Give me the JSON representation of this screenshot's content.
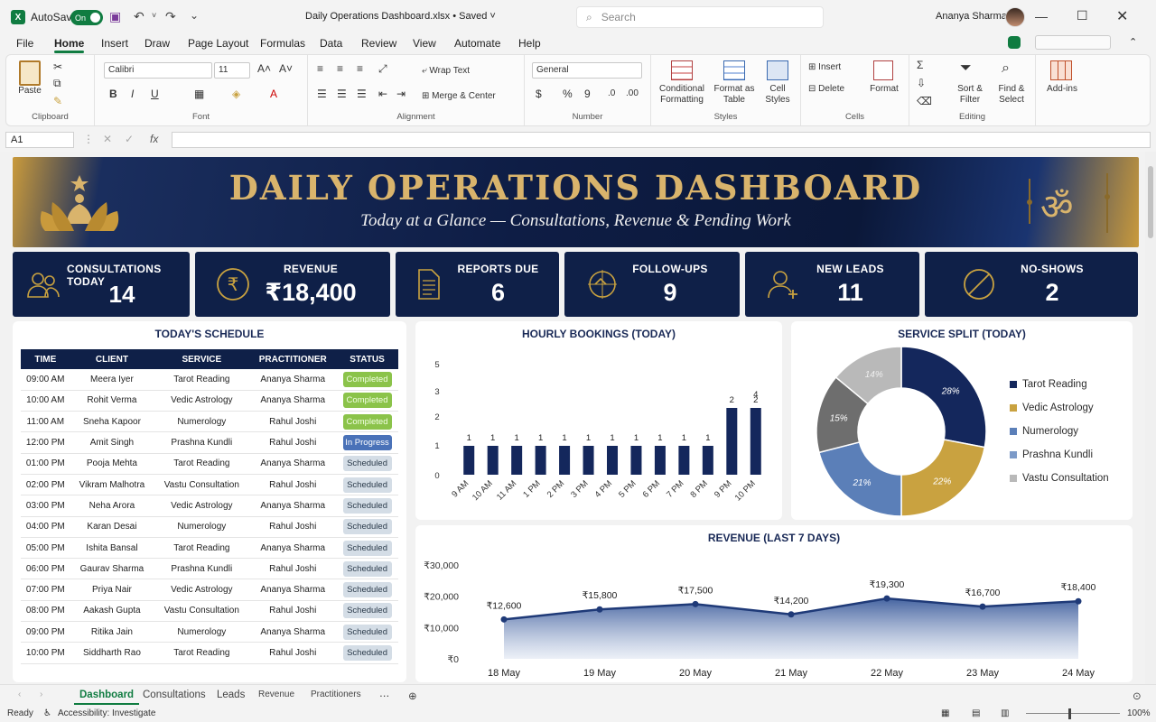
{
  "window": {
    "app_icon": "X",
    "autosave_label": "AutoSave",
    "autosave_state": "On",
    "file_title": "Daily Operations Dashboard.xlsx • Saved ˅",
    "search_placeholder": "Search",
    "user_name": "Ananya Sharma"
  },
  "menu": [
    "File",
    "Home",
    "Insert",
    "Draw",
    "Page Layout",
    "Formulas",
    "Data",
    "Review",
    "View",
    "Automate",
    "Help"
  ],
  "ribbon": {
    "clipboard": {
      "paste": "Paste",
      "label": "Clipboard"
    },
    "font": {
      "family": "Calibri",
      "size": "11",
      "label": "Font"
    },
    "alignment": {
      "wrap": "Wrap Text",
      "merge": "Merge & Center",
      "label": "Alignment"
    },
    "number": {
      "format": "General",
      "label": "Number"
    },
    "styles": {
      "conditional": "Conditional Formatting",
      "format_table": "Format as Table",
      "cell_styles": "Cell Styles",
      "label": "Styles"
    },
    "cells": {
      "insert": "Insert",
      "delete": "Delete",
      "format": "Format",
      "label": "Cells"
    },
    "editing": {
      "sort": "Sort & Filter",
      "find": "Find & Select",
      "label": "Editing"
    },
    "addins": {
      "label": "Add-ins"
    }
  },
  "formula_bar": {
    "name_box": "A1",
    "fx": "fx",
    "value": ""
  },
  "banner": {
    "title": "DAILY OPERATIONS DASHBOARD",
    "subtitle": "Today at a Glance — Consultations, Revenue & Pending Work"
  },
  "kpis": [
    {
      "label": "CONSULTATIONS TODAY",
      "value": "14",
      "icon": "people-icon"
    },
    {
      "label": "REVENUE",
      "value": "₹18,400",
      "icon": "rupee-icon"
    },
    {
      "label": "REPORTS DUE",
      "value": "6",
      "icon": "document-icon"
    },
    {
      "label": "FOLLOW-UPS",
      "value": "9",
      "icon": "target-icon"
    },
    {
      "label": "NEW LEADS",
      "value": "11",
      "icon": "add-person-icon"
    },
    {
      "label": "NO-SHOWS",
      "value": "2",
      "icon": "prohibited-icon"
    }
  ],
  "schedule": {
    "title": "TODAY'S SCHEDULE",
    "headers": [
      "TIME",
      "CLIENT",
      "SERVICE",
      "PRACTITIONER",
      "STATUS"
    ],
    "rows": [
      [
        "09:00 AM",
        "Meera Iyer",
        "Tarot Reading",
        "Ananya Sharma",
        "Completed"
      ],
      [
        "10:00 AM",
        "Rohit Verma",
        "Vedic Astrology",
        "Ananya Sharma",
        "Completed"
      ],
      [
        "11:00 AM",
        "Sneha Kapoor",
        "Numerology",
        "Rahul Joshi",
        "Completed"
      ],
      [
        "12:00 PM",
        "Amit Singh",
        "Prashna Kundli",
        "Rahul Joshi",
        "In Progress"
      ],
      [
        "01:00 PM",
        "Pooja Mehta",
        "Tarot Reading",
        "Ananya Sharma",
        "Scheduled"
      ],
      [
        "02:00 PM",
        "Vikram Malhotra",
        "Vastu Consultation",
        "Rahul Joshi",
        "Scheduled"
      ],
      [
        "03:00 PM",
        "Neha Arora",
        "Vedic Astrology",
        "Ananya Sharma",
        "Scheduled"
      ],
      [
        "04:00 PM",
        "Karan Desai",
        "Numerology",
        "Rahul Joshi",
        "Scheduled"
      ],
      [
        "05:00 PM",
        "Ishita Bansal",
        "Tarot Reading",
        "Ananya Sharma",
        "Scheduled"
      ],
      [
        "06:00 PM",
        "Gaurav Sharma",
        "Prashna Kundli",
        "Rahul Joshi",
        "Scheduled"
      ],
      [
        "07:00 PM",
        "Priya Nair",
        "Vedic Astrology",
        "Ananya Sharma",
        "Scheduled"
      ],
      [
        "08:00 PM",
        "Aakash Gupta",
        "Vastu Consultation",
        "Rahul Joshi",
        "Scheduled"
      ],
      [
        "09:00 PM",
        "Ritika Jain",
        "Numerology",
        "Ananya Sharma",
        "Scheduled"
      ],
      [
        "10:00 PM",
        "Siddharth Rao",
        "Tarot Reading",
        "Rahul Joshi",
        "Scheduled"
      ]
    ]
  },
  "chart_data": [
    {
      "type": "bar",
      "title": "HOURLY BOOKINGS (TODAY)",
      "categories": [
        "9 AM",
        "10 AM",
        "11 AM",
        "1 PM",
        "2 PM",
        "3 PM",
        "4 PM",
        "5 PM",
        "6 PM",
        "7 PM",
        "8 PM",
        "9 PM",
        "10 PM"
      ],
      "values": [
        1,
        1,
        1,
        1,
        1,
        1,
        1,
        1,
        1,
        1,
        1,
        2,
        2
      ],
      "yticks": [
        "0",
        "1",
        "2",
        "3",
        "5"
      ],
      "extra_labels": [
        "4"
      ],
      "color": "#14275c"
    },
    {
      "type": "pie",
      "title": "SERVICE SPLIT (TODAY)",
      "labels": [
        "Tarot Reading",
        "Vedic Astrology",
        "Numerology",
        "Prashna Kundli",
        "Vastu Consultation"
      ],
      "values": [
        28,
        22,
        21,
        15,
        14
      ],
      "value_labels": [
        "28%",
        "22%",
        "21%",
        "15%",
        "14%"
      ],
      "donut_only_labels": [
        "14%",
        "14%"
      ],
      "colors": [
        "#14275c",
        "#c9a240",
        "#5b7fb8",
        "#6e6e6e",
        "#b9b9b9"
      ],
      "legend_colors": [
        "#14275c",
        "#c9a240",
        "#5b7fb8",
        "#7c9ac8",
        "#b9b9b9"
      ]
    },
    {
      "type": "area",
      "title": "REVENUE (LAST 7 DAYS)",
      "categories": [
        "18 May",
        "19 May",
        "20 May",
        "21 May",
        "22 May",
        "23 May",
        "24 May"
      ],
      "values": [
        12600,
        15800,
        17500,
        14200,
        19300,
        16700,
        18400
      ],
      "value_labels": [
        "₹12,600",
        "₹15,800",
        "₹17,500",
        "₹14,200",
        "₹19,300",
        "₹16,700",
        "₹18,400"
      ],
      "yticks": [
        "₹0",
        "₹10,000",
        "₹20,000",
        "₹30,000"
      ],
      "ylim": [
        0,
        30000
      ],
      "color": "#1f3a78"
    }
  ],
  "sheet_tabs": [
    "Dashboard",
    "Consultations",
    "Leads",
    "Revenue",
    "Practitioners"
  ],
  "status": {
    "ready": "Ready",
    "accessibility": "Accessibility: Investigate",
    "zoom": "100%"
  }
}
